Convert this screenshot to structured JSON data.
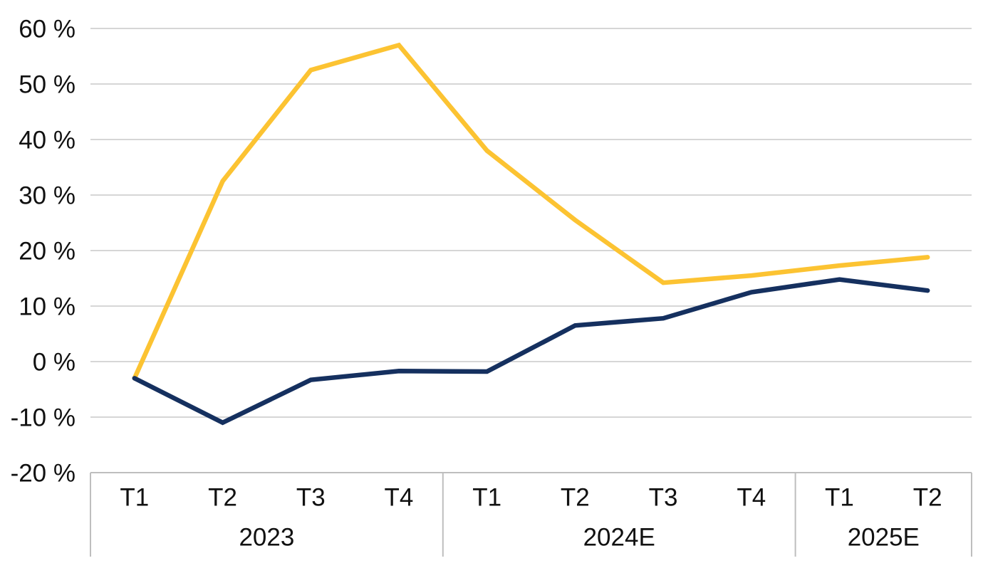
{
  "page": {
    "background": "#FFFFFF"
  },
  "chart_data": {
    "type": "line",
    "title": "",
    "legend_position": "none",
    "grid": true,
    "x_axis": {
      "quarter_labels": [
        "T1",
        "T2",
        "T3",
        "T4",
        "T1",
        "T2",
        "T3",
        "T4",
        "T1",
        "T2"
      ],
      "year_groups": [
        {
          "label": "2023",
          "quarters": 4
        },
        {
          "label": "2024E",
          "quarters": 4
        },
        {
          "label": "2025E",
          "quarters": 2
        }
      ]
    },
    "y_axis": {
      "min": -20,
      "max": 60,
      "tick_step": 10,
      "tick_suffix": " %",
      "tick_labels": [
        "60 %",
        "50 %",
        "40 %",
        "30 %",
        "20 %",
        "10 %",
        "0 %",
        "-10 %",
        "-20 %"
      ]
    },
    "series": [
      {
        "name": "yellow-series",
        "color": "#FCC332",
        "values": [
          -3,
          32.5,
          52.5,
          57,
          38,
          25.5,
          14.2,
          15.5,
          17.3,
          18.8
        ]
      },
      {
        "name": "navy-series",
        "color": "#15305F",
        "values": [
          -3,
          -11,
          -3.3,
          -1.7,
          -1.8,
          6.5,
          7.8,
          12.5,
          14.8,
          12.8
        ]
      }
    ],
    "colors": {
      "gridline": "#C9C9C9",
      "axis_border": "#BEBEBE",
      "text": "#111111"
    }
  }
}
